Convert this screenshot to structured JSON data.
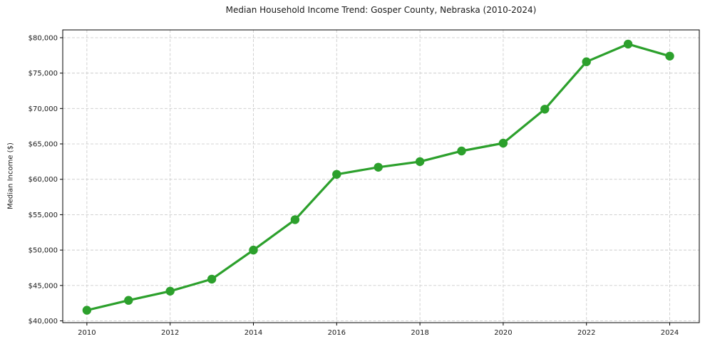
{
  "chart_data": {
    "type": "line",
    "title": "Median Household Income Trend: Gosper County, Nebraska (2010-2024)",
    "xlabel": "",
    "ylabel": "Median Income ($)",
    "x": [
      2010,
      2011,
      2012,
      2013,
      2014,
      2015,
      2016,
      2017,
      2018,
      2019,
      2020,
      2021,
      2022,
      2023,
      2024
    ],
    "y": [
      41500,
      42900,
      44200,
      45900,
      50000,
      54300,
      60700,
      61700,
      62500,
      64000,
      65100,
      69900,
      76600,
      79100,
      77400
    ],
    "x_ticks": [
      2010,
      2012,
      2014,
      2016,
      2018,
      2020,
      2022,
      2024
    ],
    "x_tick_labels": [
      "2010",
      "2012",
      "2014",
      "2016",
      "2018",
      "2020",
      "2022",
      "2024"
    ],
    "y_ticks": [
      40000,
      45000,
      50000,
      55000,
      60000,
      65000,
      70000,
      75000,
      80000
    ],
    "y_tick_labels": [
      "$40,000",
      "$45,000",
      "$50,000",
      "$55,000",
      "$60,000",
      "$65,000",
      "$70,000",
      "$75,000",
      "$80,000"
    ],
    "xlim": [
      2009.42,
      2024.71
    ],
    "ylim": [
      39750,
      81100
    ],
    "grid": true,
    "legend": "none",
    "line_color": "#2ca02c",
    "marker": "circle",
    "grid_color": "#cccccc",
    "axis_color": "#000000",
    "text_color": "#1a1a1a",
    "background": "#ffffff"
  }
}
